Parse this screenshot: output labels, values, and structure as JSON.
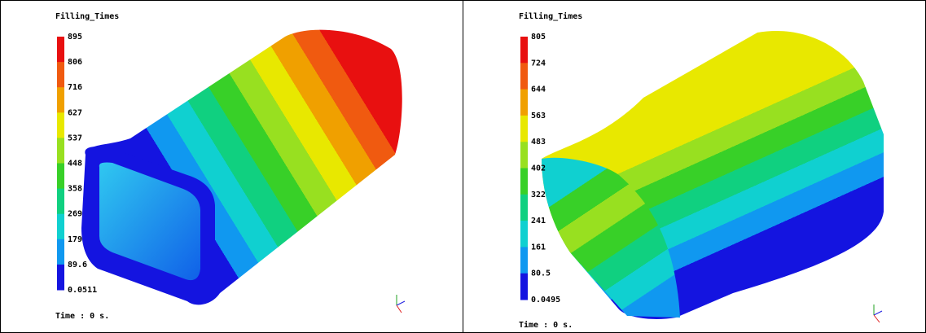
{
  "panels": [
    {
      "legend": {
        "title": "Filling_Times",
        "labels": [
          "895",
          "806",
          "716",
          "627",
          "537",
          "448",
          "358",
          "269",
          "179",
          "89.6",
          "0.0511"
        ]
      },
      "time": "Time : 0 s."
    },
    {
      "legend": {
        "title": "Filling_Times",
        "labels": [
          "805",
          "724",
          "644",
          "563",
          "483",
          "402",
          "322",
          "241",
          "161",
          "80.5",
          "0.0495"
        ]
      },
      "time": "Time : 0 s."
    }
  ]
}
